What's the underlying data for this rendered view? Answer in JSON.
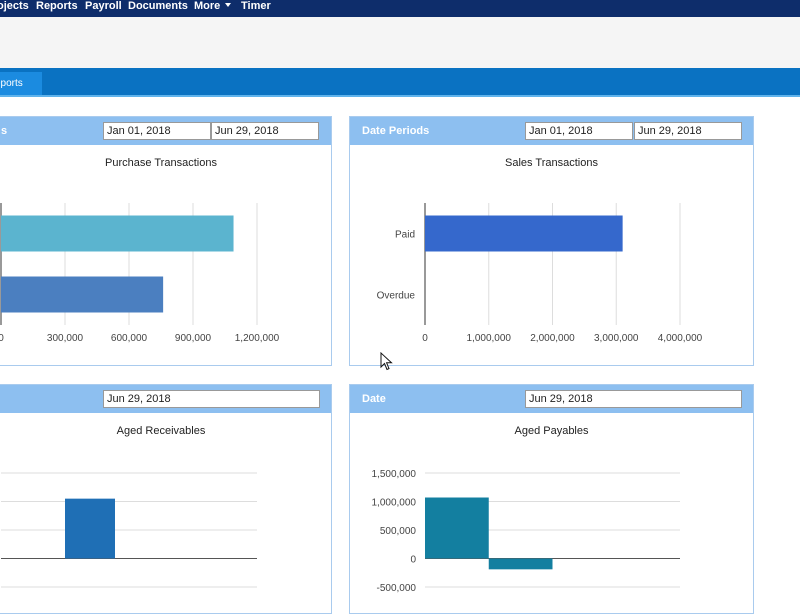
{
  "nav": {
    "items": [
      "ojects",
      "Reports",
      "Payroll",
      "Documents",
      "More",
      "Timer"
    ]
  },
  "tabbar": {
    "active_tab": "eports"
  },
  "colors": {
    "nav_bg": "#0e2d6b",
    "tab_bar": "#0a72c2",
    "panel_header": "#8dbff0"
  },
  "panels": {
    "purchase": {
      "header_title": "s",
      "from_date": "Jan 01, 2018",
      "to_date": "Jun 29, 2018",
      "chart_title": "Purchase Transactions"
    },
    "sales": {
      "header_title": "Date Periods",
      "from_date": "Jan 01, 2018",
      "to_date": "Jun 29, 2018",
      "chart_title": "Sales Transactions"
    },
    "receivables": {
      "header_title": "",
      "date": "Jun 29, 2018",
      "chart_title": "Aged Receivables"
    },
    "payables": {
      "header_title": "Date",
      "date": "Jun 29, 2018",
      "chart_title": "Aged Payables"
    }
  },
  "chart_data": [
    {
      "type": "bar",
      "orientation": "horizontal",
      "title": "Purchase Transactions",
      "categories": [
        "",
        ""
      ],
      "values": [
        1090000,
        760000
      ],
      "colors": [
        "#5bb4cf",
        "#4b7fc0"
      ],
      "xlim": [
        0,
        1200000
      ],
      "x_ticks": [
        "0",
        "300,000",
        "600,000",
        "900,000",
        "1,200,000"
      ],
      "grid": true
    },
    {
      "type": "bar",
      "orientation": "horizontal",
      "title": "Sales Transactions",
      "categories": [
        "Paid",
        "Overdue"
      ],
      "values": [
        3100000,
        0
      ],
      "colors": [
        "#3568cc",
        "#3568cc"
      ],
      "xlim": [
        0,
        4000000
      ],
      "x_ticks": [
        "0",
        "1,000,000",
        "2,000,000",
        "3,000,000",
        "4,000,000"
      ],
      "grid": true
    },
    {
      "type": "bar",
      "title": "Aged Receivables",
      "categories": [
        "",
        "",
        "",
        ""
      ],
      "values": [
        0,
        1050000,
        0,
        0
      ],
      "colors": [
        "#1f6fb5"
      ],
      "grid": true
    },
    {
      "type": "bar",
      "title": "Aged Payables",
      "categories": [
        "",
        "",
        "",
        ""
      ],
      "values": [
        1070000,
        -190000,
        0,
        0
      ],
      "colors": [
        "#137fa0"
      ],
      "ylim": [
        -500000,
        1500000
      ],
      "y_ticks": [
        "1,500,000",
        "1,000,000",
        "500,000",
        "0",
        "-500,000"
      ],
      "grid": true
    }
  ]
}
